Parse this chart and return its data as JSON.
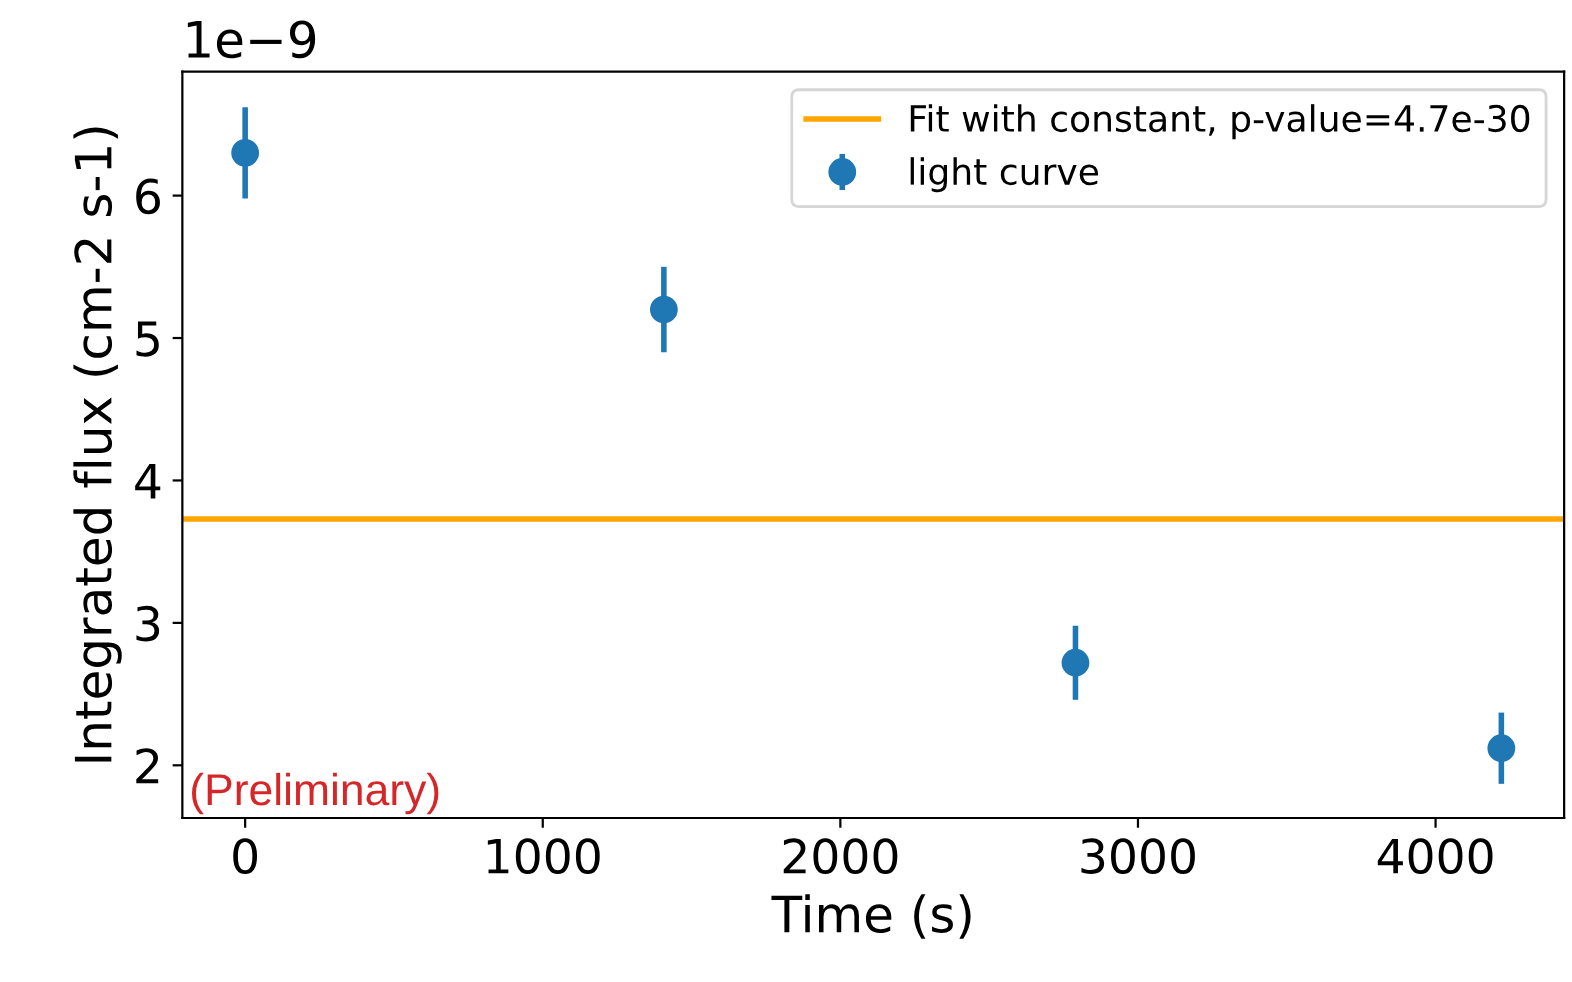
{
  "chart_data": {
    "type": "scatter",
    "xlabel": "Time (s)",
    "ylabel": "Integrated flux (cm-2 s-1)",
    "x": [
      0,
      1407,
      2790,
      4221
    ],
    "series": [
      {
        "name": "Fit with constant, p-value=4.7e-30",
        "type": "line",
        "marker": "none",
        "color": "#ffa500",
        "x": [
          -211,
          4432
        ],
        "values": [
          3.73,
          3.73
        ]
      },
      {
        "name": "light curve",
        "marker": "circle",
        "color": "#1f77b4",
        "values": [
          6.3,
          5.2,
          2.72,
          2.12
        ],
        "errors": [
          0.32,
          0.3,
          0.26,
          0.25
        ]
      }
    ],
    "xlim": [
      -211,
      4432
    ],
    "xticks": [
      0,
      1000,
      2000,
      3000,
      4000
    ],
    "ylim": [
      1.63,
      6.87
    ],
    "yticks": [
      2,
      3,
      4,
      5,
      6
    ],
    "annotations": [
      "1e−9",
      "(Preliminary)"
    ],
    "legend": "top right",
    "grid": false
  }
}
